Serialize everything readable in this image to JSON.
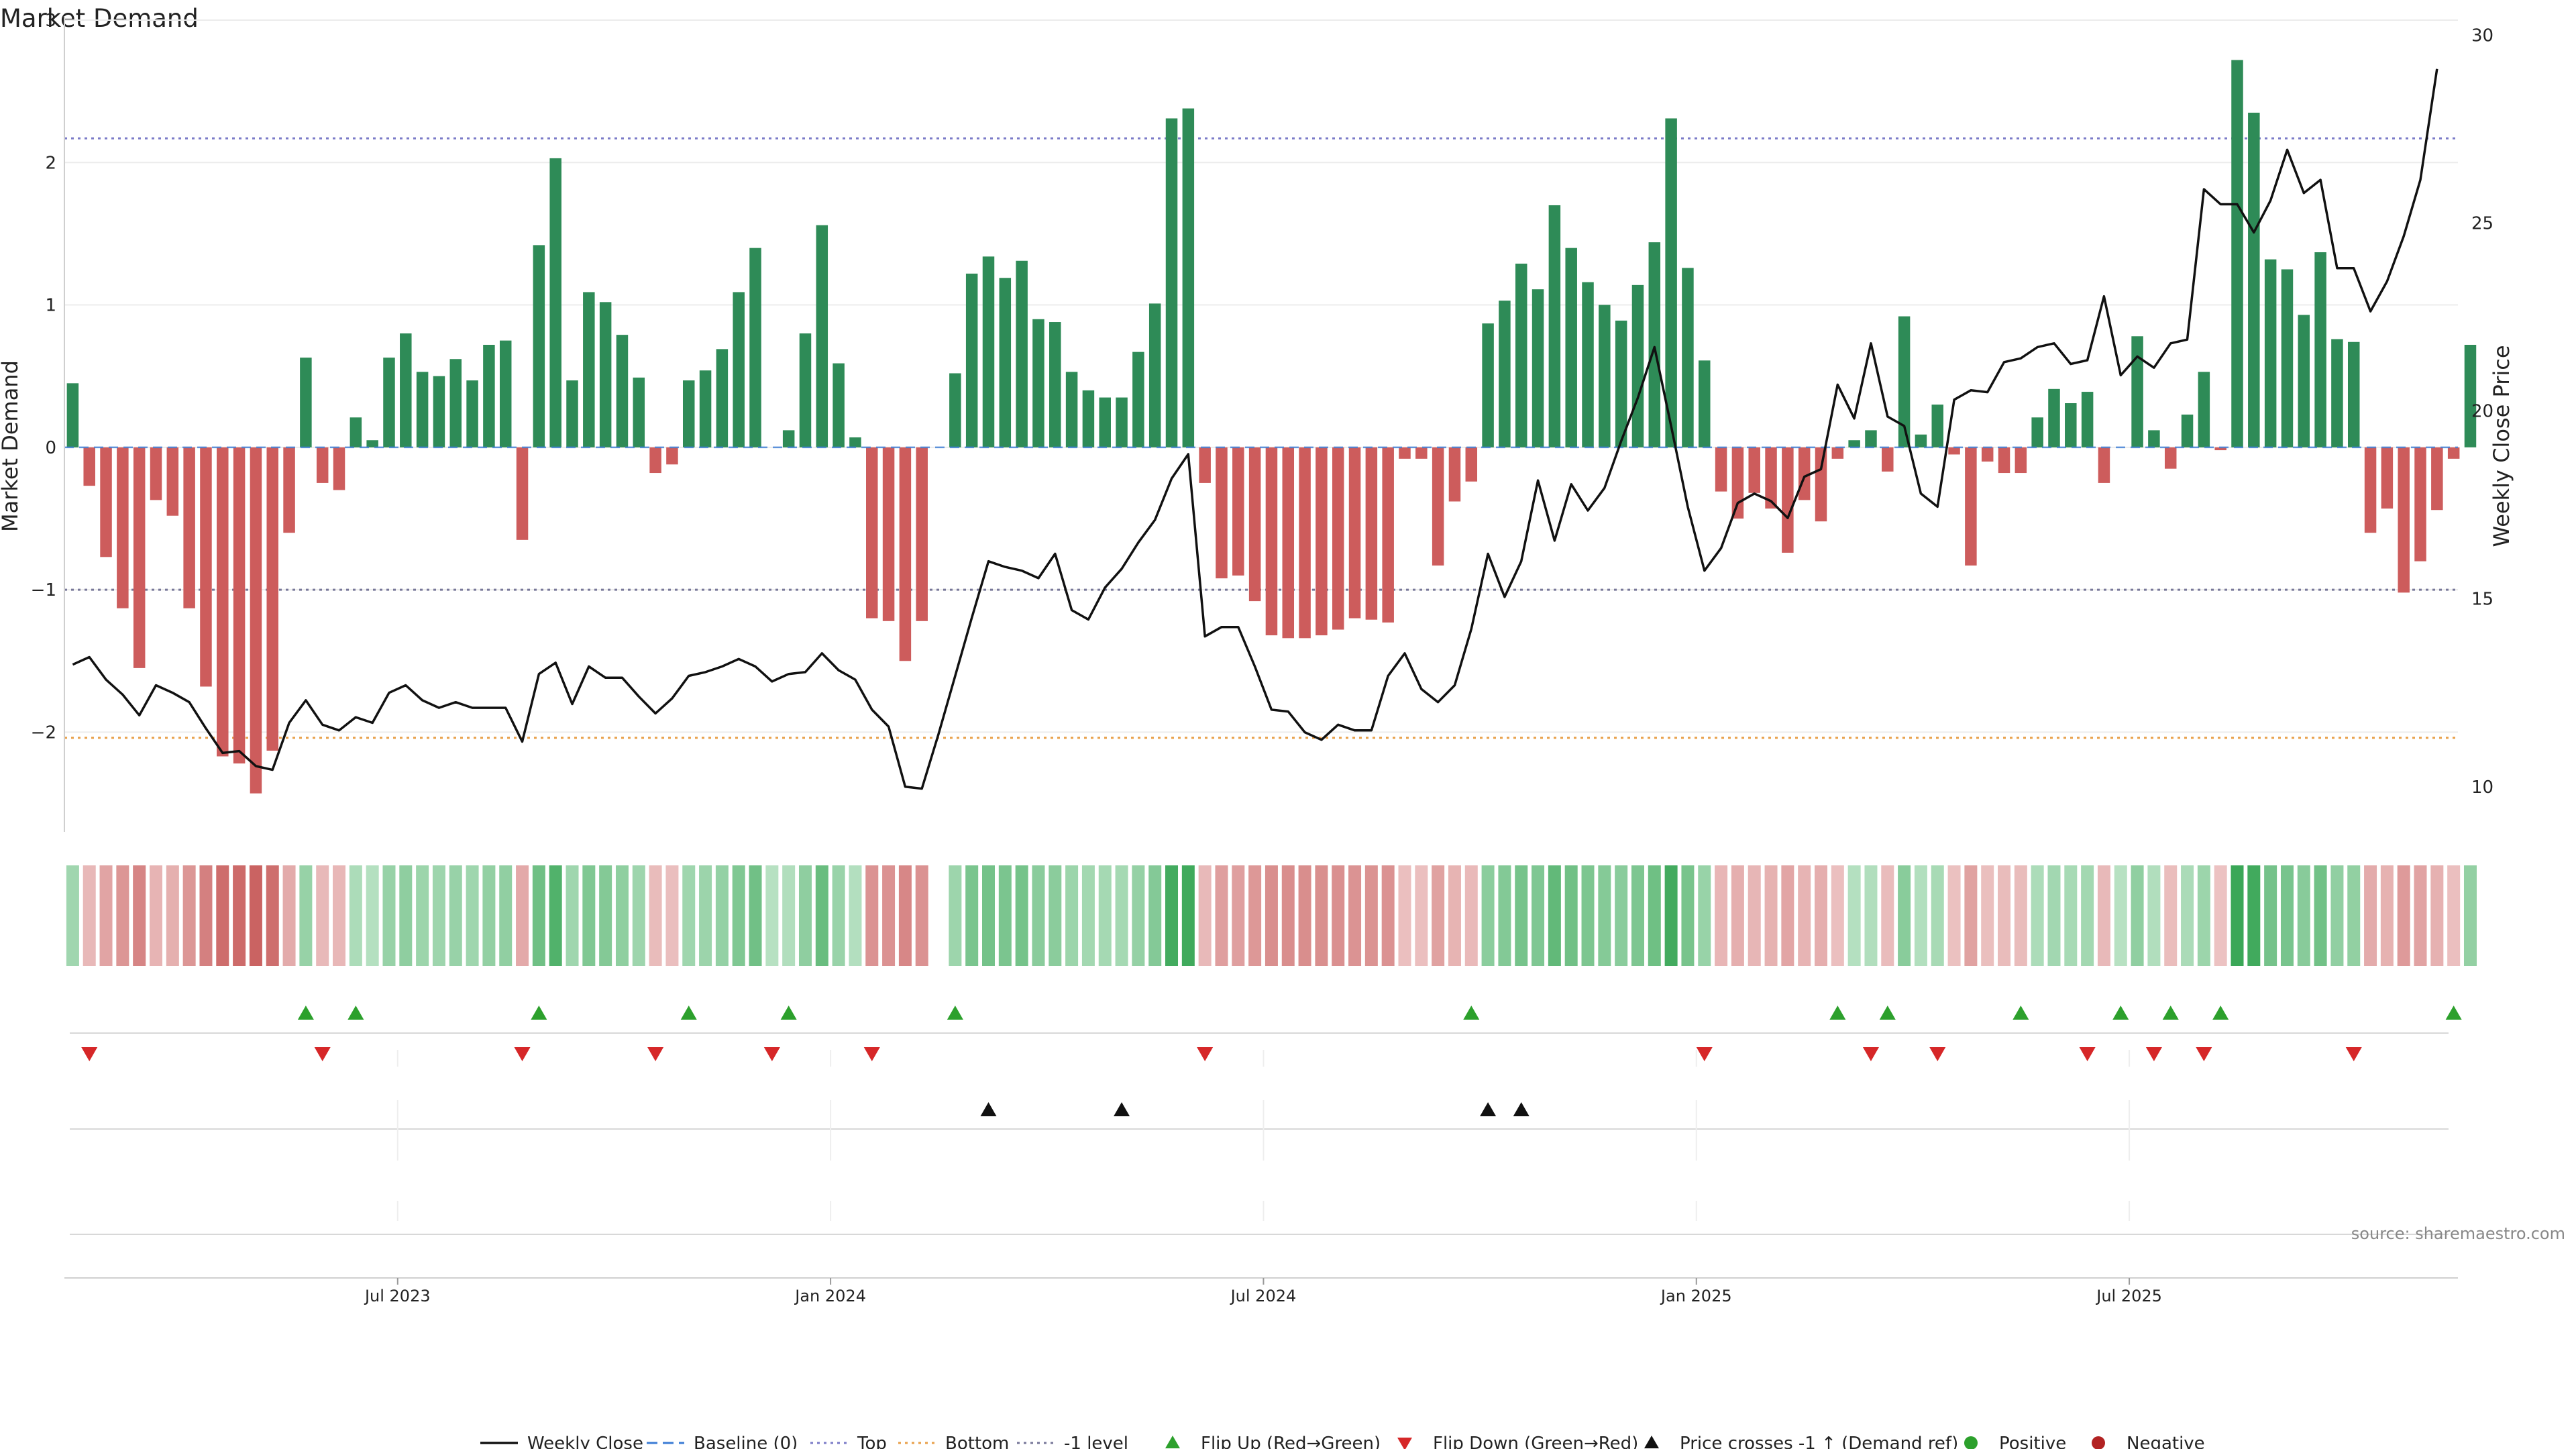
{
  "chart_data": {
    "type": "bar",
    "title": "Market Demand",
    "ylabel": "Market Demand",
    "y2label": "Weekly Close Price",
    "ylim": [
      -2.7,
      3.0
    ],
    "y2lim": [
      8.8,
      30.4
    ],
    "yticks": [
      3,
      2,
      1,
      0,
      -1,
      -2
    ],
    "ytick_labels": [
      "3",
      "2",
      "1",
      "0",
      "−1",
      "−2"
    ],
    "y2ticks": [
      30,
      25,
      20,
      15,
      10
    ],
    "y2tick_labels": [
      "30",
      "25",
      "20",
      "15",
      "10"
    ],
    "levels": {
      "top": 2.17,
      "bottom": -2.04,
      "minus_one": -1.0,
      "baseline": 0
    },
    "xtick_labels": [
      "Jul 2023",
      "Jan 2024",
      "Jul 2024",
      "Jan 2025",
      "Jul 2025"
    ],
    "xtick_index": [
      20,
      46,
      72,
      98,
      124
    ],
    "demand": [
      0.45,
      -0.27,
      -0.77,
      -1.13,
      -1.55,
      -0.37,
      -0.48,
      -1.13,
      -1.68,
      -2.17,
      -2.22,
      -2.43,
      -2.13,
      -0.6,
      0.63,
      -0.25,
      -0.3,
      0.21,
      0.05,
      0.63,
      0.8,
      0.53,
      0.5,
      0.62,
      0.47,
      0.72,
      0.75,
      -0.65,
      1.42,
      2.03,
      0.47,
      1.09,
      1.02,
      0.79,
      0.49,
      -0.18,
      -0.12,
      0.47,
      0.54,
      0.69,
      1.09,
      1.4,
      0.0,
      0.12,
      0.8,
      1.56,
      0.59,
      0.07,
      -1.2,
      -1.22,
      -1.5,
      -1.22,
      0.0,
      0.52,
      1.22,
      1.34,
      1.19,
      1.31,
      0.9,
      0.88,
      0.53,
      0.4,
      0.35,
      0.35,
      0.67,
      1.01,
      2.31,
      2.38,
      -0.25,
      -0.92,
      -0.9,
      -1.08,
      -1.32,
      -1.34,
      -1.34,
      -1.32,
      -1.28,
      -1.2,
      -1.21,
      -1.23,
      -0.08,
      -0.08,
      -0.83,
      -0.38,
      -0.24,
      0.87,
      1.03,
      1.29,
      1.11,
      1.7,
      1.4,
      1.16,
      1.0,
      0.89,
      1.14,
      1.44,
      2.31,
      1.26,
      0.61,
      -0.31,
      -0.5,
      -0.32,
      -0.43,
      -0.74,
      -0.37,
      -0.52,
      -0.08,
      0.05,
      0.12,
      -0.17,
      0.92,
      0.09,
      0.3,
      -0.05,
      -0.83,
      -0.1,
      -0.18,
      -0.18,
      0.21,
      0.41,
      0.31,
      0.39,
      -0.25,
      0.0,
      0.78,
      0.12,
      -0.15,
      0.23,
      0.53,
      -0.02,
      2.72,
      2.35,
      1.32,
      1.25,
      0.93,
      1.37,
      0.76,
      0.74,
      -0.6,
      -0.43,
      -1.02,
      -0.8,
      -0.44,
      -0.08,
      0.72
    ],
    "price": [
      13.25,
      13.45,
      12.85,
      12.45,
      11.9,
      12.7,
      12.5,
      12.25,
      11.55,
      10.9,
      10.95,
      10.55,
      10.45,
      11.7,
      12.3,
      11.65,
      11.5,
      11.85,
      11.7,
      12.5,
      12.7,
      12.3,
      12.1,
      12.25,
      12.1,
      12.1,
      12.1,
      11.2,
      13.0,
      13.3,
      12.2,
      13.2,
      12.9,
      12.9,
      12.4,
      11.95,
      12.35,
      12.95,
      13.05,
      13.2,
      13.4,
      13.2,
      12.8,
      13.0,
      13.05,
      13.55,
      13.1,
      12.85,
      12.05,
      11.6,
      10.0,
      9.95,
      11.4,
      12.95,
      14.5,
      16.0,
      15.85,
      15.75,
      15.55,
      16.2,
      14.7,
      14.45,
      15.3,
      15.8,
      16.5,
      17.1,
      18.2,
      18.85,
      14.0,
      14.25,
      14.25,
      13.2,
      12.05,
      12.0,
      11.45,
      11.25,
      11.65,
      11.5,
      11.5,
      12.95,
      13.55,
      12.6,
      12.25,
      12.7,
      14.2,
      16.2,
      15.05,
      16.0,
      18.15,
      16.55,
      18.05,
      17.35,
      17.95,
      19.2,
      20.35,
      21.7,
      19.6,
      17.45,
      15.75,
      16.35,
      17.55,
      17.8,
      17.6,
      17.15,
      18.25,
      18.45,
      20.7,
      19.8,
      21.8,
      19.85,
      19.6,
      17.8,
      17.45,
      20.3,
      20.55,
      20.5,
      21.3,
      21.4,
      21.7,
      21.8,
      21.25,
      21.35,
      23.05,
      20.95,
      21.45,
      21.15,
      21.8,
      21.9,
      25.9,
      25.5,
      25.5,
      24.75,
      25.6,
      26.95,
      25.8,
      26.15,
      23.8,
      23.8,
      22.65,
      23.45,
      24.65,
      26.15,
      29.1
    ],
    "flip_up": [
      14,
      17,
      28,
      37,
      43,
      53,
      84,
      106,
      109,
      117,
      123,
      126,
      129,
      143
    ],
    "flip_down": [
      1,
      15,
      27,
      35,
      42,
      48,
      68,
      98,
      108,
      112,
      121,
      125,
      128,
      137
    ],
    "price_cross": [
      55,
      63,
      85,
      87
    ],
    "gap_indices": [
      52
    ],
    "colors": {
      "positive_bar": "#2e8b57",
      "negative_bar": "#cd5c5c",
      "price_line": "#111111",
      "top_line": "#7b7bc8",
      "bottom_line": "#e8a04a",
      "minus_one_line": "#777799",
      "baseline": "#3a7bd5",
      "flip_up": "#2ca02c",
      "flip_down": "#d62728",
      "price_cross": "#111111",
      "positive_dot": "#2ca02c",
      "negative_dot": "#b22222",
      "grid": "#ececec"
    },
    "legend": [
      {
        "label": "Weekly Close",
        "kind": "line"
      },
      {
        "label": "Baseline (0)",
        "kind": "dash-blue"
      },
      {
        "label": "Top",
        "kind": "dot-purple"
      },
      {
        "label": "Bottom",
        "kind": "dot-orange"
      },
      {
        "label": "-1 level",
        "kind": "dot-gray"
      },
      {
        "label": "Flip Up (Red→Green)",
        "kind": "tri-up-green"
      },
      {
        "label": "Flip Down (Green→Red)",
        "kind": "tri-down-red"
      },
      {
        "label": "Price crosses -1 ↑ (Demand ref)",
        "kind": "tri-up-black"
      },
      {
        "label": "Positive",
        "kind": "dot-green"
      },
      {
        "label": "Negative",
        "kind": "dot-red"
      }
    ],
    "source": "source: sharemaestro.com"
  }
}
